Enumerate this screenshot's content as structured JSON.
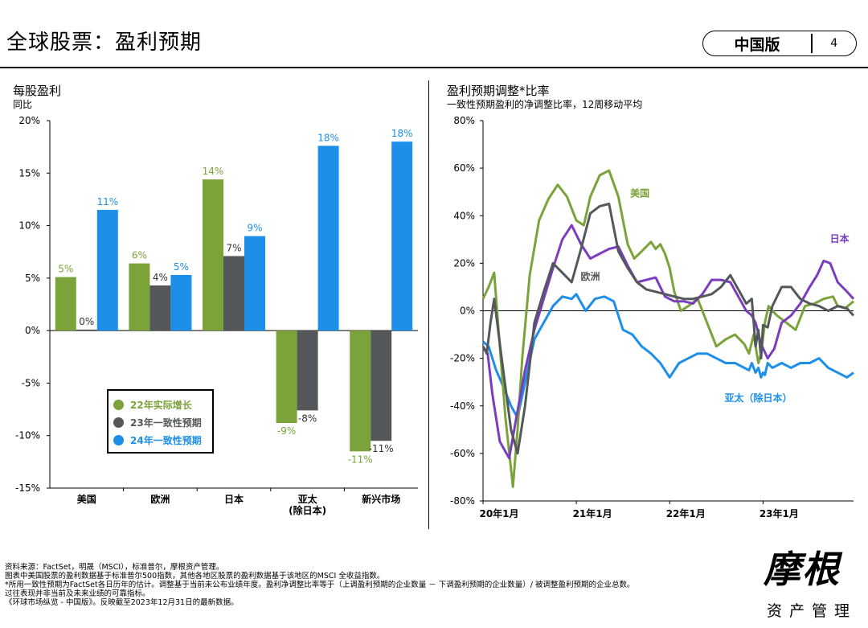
{
  "header": {
    "title": "全球股票：盈利预期",
    "edition": "中国版",
    "page": "4"
  },
  "left_panel": {
    "title": "每股盈利",
    "subtitle": "同比"
  },
  "right_panel": {
    "title": "盈利预期调整*比率",
    "subtitle": "一致性预期盈利的净调整比率，12周移动平均"
  },
  "legend": [
    {
      "label": "22年实际增长",
      "color": "#7BA33A"
    },
    {
      "label": "23年一致性预期",
      "color": "#54585A"
    },
    {
      "label": "24年一致性预期",
      "color": "#1D8FE8"
    }
  ],
  "footnotes": [
    "资料来源：FactSet，明晟（MSCI），标准普尔，摩根资产管理。",
    "图表中美国股票的盈利数据基于标准普尔500指数，其他各地区股票的盈利数据基于该地区的MSCI 全收益指数。",
    "*所用一致性预期为FactSet各日历年的估计。调整基于当前未公布业绩年度。盈利净调整比率等于（上调盈利预期的企业数量 － 下调盈利预期的企业数量）/ 被调整盈利预期的企业总数。",
    "过往表现并非当前及未来业绩的可靠指标。",
    "《环球市场纵览 - 中国版》。反映截至2023年12月31日的最新数据。"
  ],
  "logo": {
    "mark": "摩根",
    "sub": "资产管理"
  },
  "chart_data": [
    {
      "type": "bar",
      "title": "每股盈利",
      "subtitle": "同比",
      "categories": [
        "美国",
        "欧洲",
        "日本",
        "亚太\n(除日本)",
        "新兴市场"
      ],
      "ylim": [
        -15,
        20
      ],
      "yticks": [
        -15,
        -10,
        -5,
        0,
        5,
        10,
        15,
        20
      ],
      "ytick_labels": [
        "-15%",
        "-10%",
        "-5%",
        "0%",
        "5%",
        "10%",
        "15%",
        "20%"
      ],
      "series": [
        {
          "name": "22年实际增长",
          "color": "#7BA33A",
          "values": [
            5.1,
            6.4,
            14.4,
            -8.8,
            -11.5
          ],
          "labels": [
            "5%",
            "6%",
            "14%",
            "-9%",
            "-11%"
          ]
        },
        {
          "name": "23年一致性预期",
          "color": "#54585A",
          "values": [
            0.1,
            4.3,
            7.1,
            -7.6,
            -10.5
          ],
          "labels": [
            "0%",
            "4%",
            "7%",
            "-8%",
            "-11%"
          ]
        },
        {
          "name": "24年一致性预期",
          "color": "#1D8FE8",
          "values": [
            11.5,
            5.3,
            9.0,
            17.6,
            18.0
          ],
          "labels": [
            "11%",
            "5%",
            "9%",
            "18%",
            "18%"
          ]
        }
      ],
      "legend_position": "bottom-left"
    },
    {
      "type": "line",
      "title": "盈利预期调整*比率",
      "subtitle": "一致性预期盈利的净调整比率，12周移动平均",
      "ylim": [
        -80,
        80
      ],
      "yticks": [
        -80,
        -60,
        -40,
        -20,
        0,
        20,
        40,
        60,
        80
      ],
      "ytick_labels": [
        "-80%",
        "-60%",
        "-40%",
        "-20%",
        "0%",
        "20%",
        "40%",
        "60%",
        "80%"
      ],
      "xlim": [
        2020.0,
        2023.97
      ],
      "xticks": [
        2020.0,
        2021.0,
        2022.0,
        2023.0
      ],
      "xtick_labels": [
        "20年1月",
        "21年1月",
        "22年1月",
        "23年1月"
      ],
      "series": [
        {
          "name": "美国",
          "color": "#7BA33A",
          "x": [
            2020.0,
            2020.06,
            2020.12,
            2020.16,
            2020.24,
            2020.32,
            2020.37,
            2020.42,
            2020.5,
            2020.6,
            2020.7,
            2020.8,
            2020.9,
            2021.0,
            2021.08,
            2021.15,
            2021.25,
            2021.35,
            2021.45,
            2021.55,
            2021.62,
            2021.7,
            2021.8,
            2021.85,
            2021.9,
            2021.95,
            2022.0,
            2022.05,
            2022.12,
            2022.2,
            2022.3,
            2022.4,
            2022.5,
            2022.6,
            2022.7,
            2022.8,
            2022.85,
            2022.9,
            2022.95,
            2022.98,
            2023.02,
            2023.06,
            2023.1,
            2023.15,
            2023.25,
            2023.35,
            2023.45,
            2023.55,
            2023.65,
            2023.75,
            2023.8,
            2023.88,
            2023.97
          ],
          "y": [
            5,
            10,
            16,
            -5,
            -45,
            -74,
            -50,
            -20,
            15,
            38,
            47,
            53,
            48,
            38,
            36,
            48,
            57,
            59,
            48,
            28,
            22,
            25,
            29,
            26,
            28,
            24,
            18,
            8,
            0,
            2,
            5,
            -5,
            -15,
            -12,
            -10,
            -14,
            -18,
            -10,
            -22,
            -18,
            -5,
            2,
            0,
            -2,
            -5,
            -8,
            2,
            3,
            5,
            6,
            2,
            1,
            4
          ]
        },
        {
          "name": "欧洲",
          "color": "#54585A",
          "x": [
            2020.0,
            2020.04,
            2020.08,
            2020.12,
            2020.2,
            2020.3,
            2020.37,
            2020.45,
            2020.55,
            2020.65,
            2020.75,
            2020.85,
            2020.95,
            2021.05,
            2021.15,
            2021.25,
            2021.35,
            2021.45,
            2021.55,
            2021.65,
            2021.75,
            2021.85,
            2021.95,
            2022.05,
            2022.15,
            2022.25,
            2022.35,
            2022.45,
            2022.55,
            2022.65,
            2022.75,
            2022.82,
            2022.88,
            2022.9,
            2022.92,
            2022.95,
            2022.98,
            2023.0,
            2023.05,
            2023.1,
            2023.2,
            2023.3,
            2023.4,
            2023.5,
            2023.6,
            2023.7,
            2023.8,
            2023.9,
            2023.97
          ],
          "y": [
            -15,
            -18,
            -5,
            5,
            -20,
            -50,
            -60,
            -40,
            -5,
            8,
            20,
            16,
            12,
            26,
            41,
            44,
            45,
            25,
            18,
            12,
            9,
            8,
            7,
            6,
            5,
            5,
            6,
            7,
            10,
            15,
            8,
            3,
            5,
            -5,
            -15,
            -8,
            -20,
            -6,
            -7,
            2,
            10,
            10,
            5,
            3,
            2,
            0,
            2,
            1,
            -2
          ]
        },
        {
          "name": "日本",
          "color": "#7A3DBE",
          "x": [
            2020.0,
            2020.05,
            2020.1,
            2020.18,
            2020.28,
            2020.37,
            2020.45,
            2020.55,
            2020.65,
            2020.75,
            2020.85,
            2020.95,
            2021.05,
            2021.15,
            2021.25,
            2021.35,
            2021.45,
            2021.55,
            2021.65,
            2021.75,
            2021.85,
            2021.95,
            2022.05,
            2022.15,
            2022.25,
            2022.35,
            2022.45,
            2022.55,
            2022.65,
            2022.75,
            2022.82,
            2022.88,
            2022.92,
            2022.98,
            2023.05,
            2023.12,
            2023.2,
            2023.3,
            2023.4,
            2023.5,
            2023.58,
            2023.65,
            2023.72,
            2023.8,
            2023.9,
            2023.97
          ],
          "y": [
            -15,
            -18,
            -35,
            -55,
            -62,
            -42,
            -25,
            -8,
            5,
            18,
            30,
            36,
            28,
            22,
            24,
            26,
            27,
            19,
            12,
            13,
            14,
            6,
            4,
            4,
            3,
            7,
            13,
            13,
            12,
            5,
            0,
            -2,
            -5,
            -14,
            -20,
            -16,
            -5,
            -2,
            3,
            10,
            15,
            21,
            20,
            12,
            8,
            5
          ]
        },
        {
          "name": "亚太（除日本）",
          "color": "#1D8FE8",
          "x": [
            2020.0,
            2020.06,
            2020.14,
            2020.22,
            2020.3,
            2020.37,
            2020.45,
            2020.55,
            2020.65,
            2020.75,
            2020.85,
            2020.95,
            2021.0,
            2021.1,
            2021.2,
            2021.3,
            2021.4,
            2021.5,
            2021.6,
            2021.7,
            2021.8,
            2021.9,
            2022.0,
            2022.1,
            2022.2,
            2022.3,
            2022.4,
            2022.5,
            2022.6,
            2022.7,
            2022.8,
            2022.85,
            2022.88,
            2022.92,
            2022.95,
            2022.98,
            2023.0,
            2023.02,
            2023.05,
            2023.1,
            2023.2,
            2023.3,
            2023.4,
            2023.5,
            2023.6,
            2023.7,
            2023.8,
            2023.9,
            2023.97
          ],
          "y": [
            -13,
            -15,
            -25,
            -32,
            -40,
            -45,
            -30,
            -12,
            -5,
            2,
            6,
            5,
            7,
            0,
            5,
            6,
            4,
            -8,
            -10,
            -15,
            -18,
            -22,
            -28,
            -22,
            -20,
            -18,
            -18,
            -20,
            -22,
            -22,
            -24,
            -25,
            -22,
            -26,
            -24,
            -28,
            -26,
            -27,
            -22,
            -24,
            -22,
            -24,
            -22,
            -22,
            -20,
            -24,
            -26,
            -28,
            -26
          ]
        }
      ],
      "annotations": [
        "美国",
        "欧洲",
        "日本",
        "亚太（除日本）"
      ]
    }
  ]
}
